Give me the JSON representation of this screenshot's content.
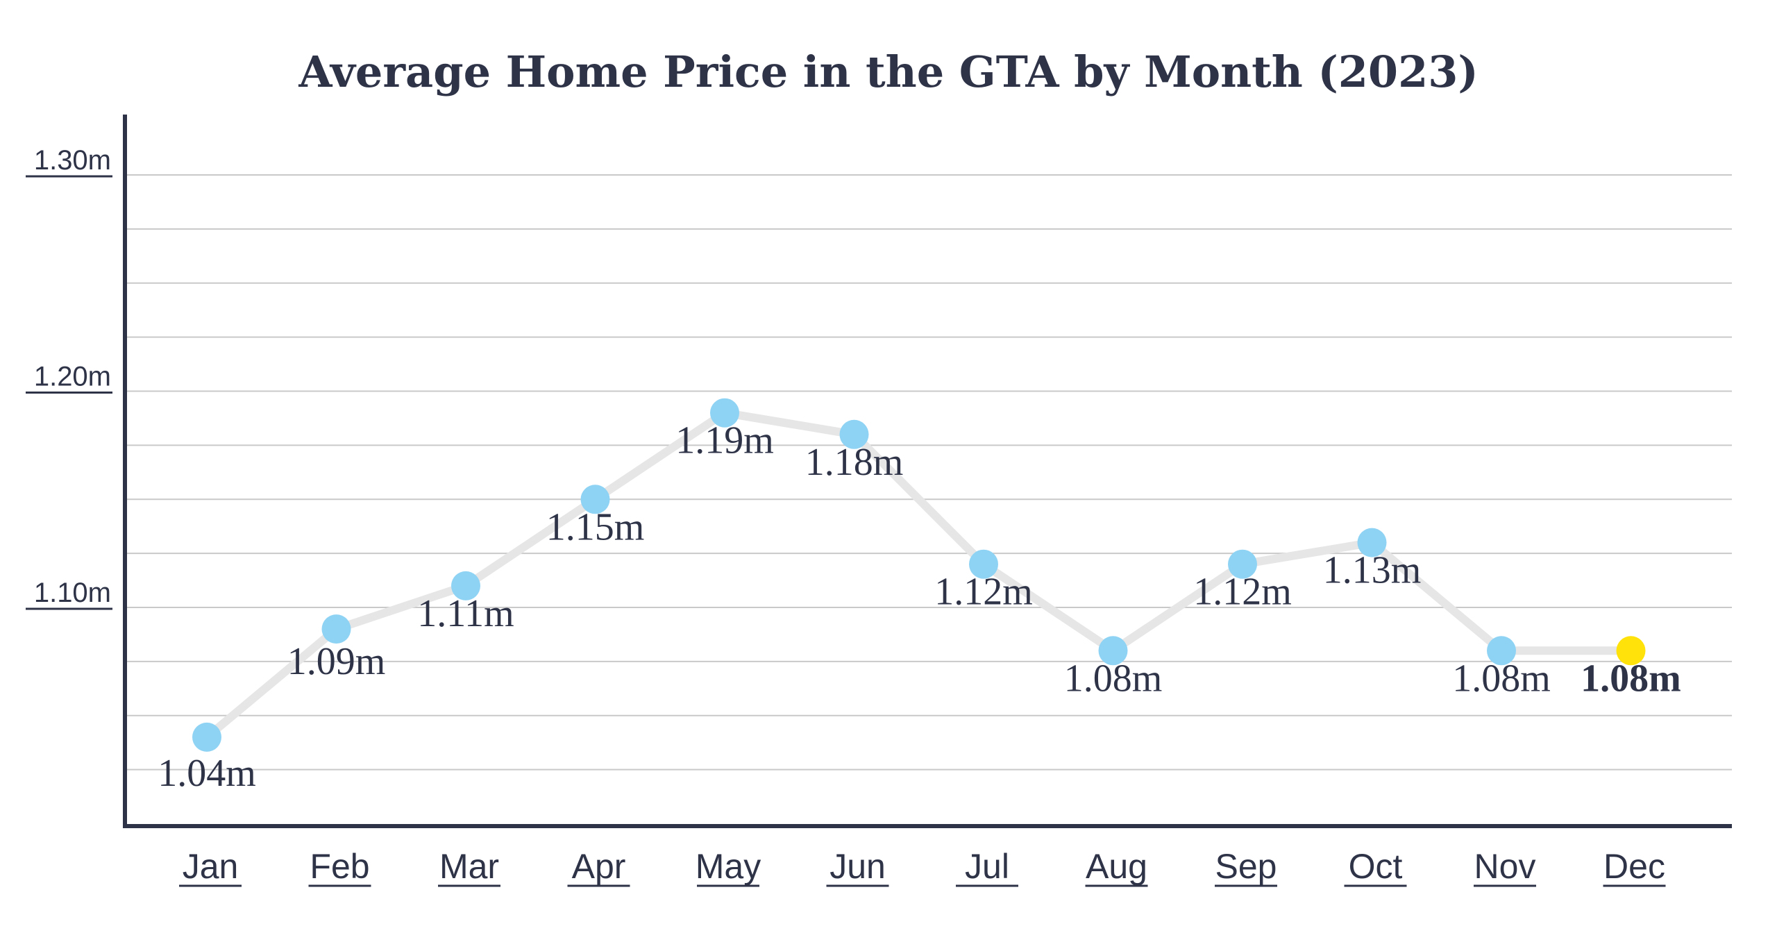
{
  "chart_data": {
    "type": "line",
    "title": "Average Home Price in the GTA by Month (2023)",
    "xlabel": "",
    "ylabel": "",
    "categories": [
      "Jan",
      "Feb",
      "Mar",
      "Apr",
      "May",
      "Jun",
      "Jul",
      "Aug",
      "Sep",
      "Oct",
      "Nov",
      "Dec"
    ],
    "series": [
      {
        "name": "Average Home Price",
        "values": [
          1.04,
          1.09,
          1.11,
          1.15,
          1.19,
          1.18,
          1.12,
          1.08,
          1.12,
          1.13,
          1.08,
          1.08
        ],
        "labels": [
          "1.04m",
          "1.09m",
          "1.11m",
          "1.15m",
          "1.19m",
          "1.18m",
          "1.12m",
          "1.08m",
          "1.12m",
          "1.13m",
          "1.08m",
          "1.08m"
        ]
      }
    ],
    "y_ticks": [
      {
        "value": 1.1,
        "label": "1.10m"
      },
      {
        "value": 1.2,
        "label": "1.20m"
      },
      {
        "value": 1.3,
        "label": "1.30m"
      }
    ],
    "ylim": [
      1.0,
      1.32
    ],
    "grid": true,
    "highlight_index": 11,
    "colors": {
      "point": "#8fd3f4",
      "highlight": "#ffe20a",
      "line": "#e6e6e6",
      "grid": "#c9c9c9",
      "axis": "#2e3348",
      "text": "#2e3348"
    }
  }
}
